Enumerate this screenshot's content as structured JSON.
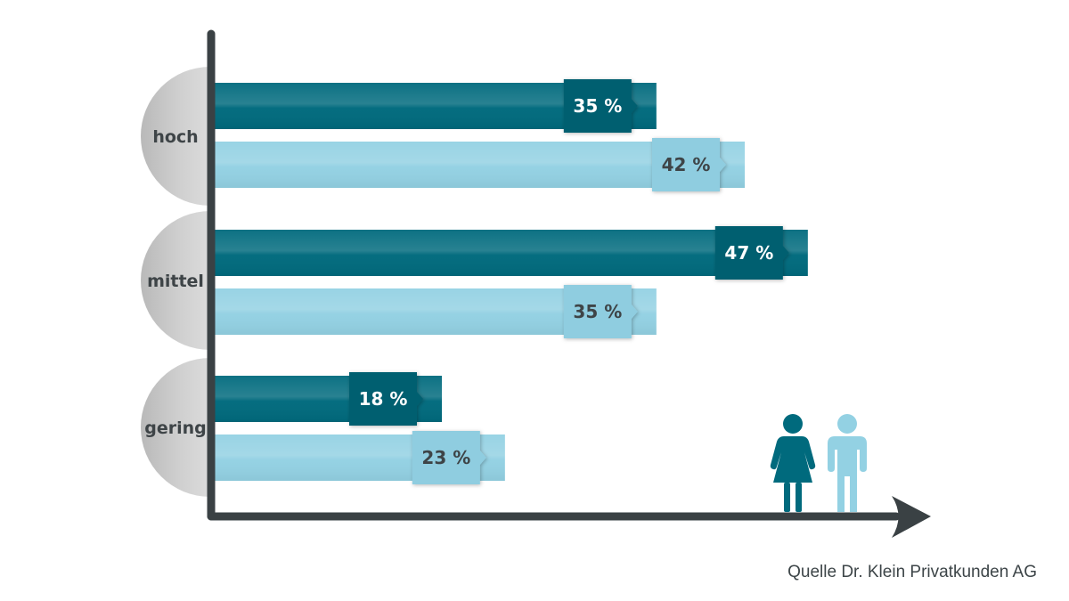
{
  "chart_data": {
    "type": "bar",
    "orientation": "horizontal",
    "categories": [
      "hoch",
      "mittel",
      "gering"
    ],
    "series": [
      {
        "values": [
          35,
          47,
          18
        ],
        "value_labels": [
          "35 %",
          "47 %",
          "18 %"
        ],
        "color": "#006a7d"
      },
      {
        "values": [
          42,
          35,
          23
        ],
        "value_labels": [
          "42 %",
          "35 %",
          "23 %"
        ],
        "color": "#93d1e3"
      }
    ],
    "unit": "%",
    "xlim": [
      0,
      54
    ],
    "grid": false,
    "legend": "person icons bottom-right (woman dark, man light)",
    "title": "",
    "xlabel": "",
    "ylabel": ""
  },
  "colors": {
    "axis": "#3a4144",
    "women": "#006a7d",
    "women_tag": "#005f6f",
    "men": "#93d1e3",
    "men_tag": "#8fcde0",
    "category_bg": "#c8c8c8",
    "text_dark": "#3e4447",
    "text_light": "#ffffff"
  },
  "icons": {
    "women": "woman-icon",
    "men": "man-icon"
  },
  "source": "Quelle Dr. Klein Privatkunden AG"
}
